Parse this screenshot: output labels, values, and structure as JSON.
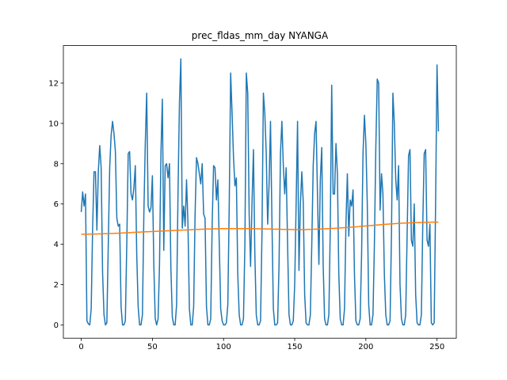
{
  "chart_data": {
    "type": "line",
    "title": "prec_fldas_mm_day NYANGA",
    "xlim": [
      -12.55,
      263.55
    ],
    "xticks": [
      0,
      50,
      100,
      150,
      200,
      250
    ],
    "ylim": [
      -0.66,
      13.86
    ],
    "yticks": [
      0,
      2,
      4,
      6,
      8,
      10,
      12
    ],
    "series": [
      {
        "color": "#1f77b4",
        "values": [
          5.6,
          6.6,
          5.9,
          6.5,
          0.2,
          0.05,
          0.0,
          0.8,
          4.8,
          7.6,
          7.6,
          4.7,
          7.6,
          8.9,
          7.8,
          2.6,
          0.5,
          0.0,
          0.1,
          4.0,
          7.8,
          9.4,
          10.1,
          9.5,
          8.6,
          5.3,
          4.9,
          5.0,
          0.9,
          0.0,
          0.0,
          0.2,
          4.0,
          8.5,
          8.6,
          6.5,
          6.2,
          6.8,
          7.9,
          3.5,
          0.9,
          0.0,
          0.0,
          0.5,
          5.5,
          9.0,
          11.5,
          5.9,
          5.6,
          5.8,
          7.4,
          3.0,
          0.3,
          0.0,
          0.3,
          3.0,
          8.5,
          11.2,
          3.7,
          7.9,
          8.0,
          7.3,
          8.0,
          2.8,
          0.4,
          0.0,
          0.0,
          1.0,
          6.5,
          11.0,
          13.2,
          4.8,
          5.9,
          4.9,
          7.2,
          5.0,
          0.8,
          0.0,
          0.0,
          0.9,
          5.5,
          8.3,
          8.0,
          7.5,
          7.0,
          8.0,
          5.5,
          5.3,
          0.9,
          0.0,
          0.0,
          0.3,
          5.0,
          7.9,
          7.8,
          6.2,
          7.2,
          4.0,
          0.8,
          0.2,
          0.0,
          0.0,
          0.1,
          1.0,
          6.0,
          12.5,
          10.5,
          8.3,
          6.9,
          7.3,
          2.5,
          0.5,
          0.0,
          0.0,
          0.3,
          4.0,
          12.5,
          11.5,
          5.5,
          2.9,
          6.0,
          8.7,
          3.5,
          0.5,
          0.0,
          0.0,
          0.2,
          4.5,
          11.5,
          10.5,
          8.5,
          5.0,
          7.0,
          10.1,
          5.2,
          0.8,
          0.0,
          0.0,
          0.1,
          3.0,
          8.5,
          10.1,
          7.9,
          6.5,
          7.8,
          4.0,
          0.5,
          0.0,
          0.0,
          0.2,
          2.0,
          6.0,
          10.1,
          2.7,
          6.0,
          7.6,
          6.1,
          1.5,
          0.1,
          0.0,
          0.0,
          0.5,
          4.0,
          7.9,
          9.5,
          10.1,
          6.5,
          3.0,
          7.2,
          8.8,
          3.0,
          0.3,
          0.0,
          0.0,
          0.5,
          4.8,
          11.9,
          6.5,
          6.5,
          9.0,
          7.5,
          2.5,
          0.3,
          0.0,
          0.0,
          0.8,
          5.0,
          7.5,
          4.4,
          6.2,
          5.9,
          6.7,
          2.5,
          0.2,
          0.0,
          0.0,
          0.3,
          3.5,
          8.5,
          10.4,
          9.0,
          6.0,
          1.0,
          0.0,
          0.0,
          0.5,
          4.0,
          8.8,
          12.2,
          12.0,
          5.7,
          7.5,
          6.5,
          2.5,
          0.5,
          0.0,
          0.0,
          0.2,
          4.5,
          11.5,
          10.0,
          7.2,
          6.2,
          7.9,
          2.0,
          0.3,
          0.0,
          0.0,
          0.5,
          4.5,
          8.4,
          8.7,
          4.2,
          3.9,
          6.0,
          1.5,
          0.1,
          0.0,
          0.0,
          0.5,
          5.0,
          8.5,
          8.7,
          4.2,
          3.9,
          5.0,
          0.1,
          0.0,
          0.1,
          6.0,
          12.9,
          9.6
        ]
      },
      {
        "color": "#ff7f0e",
        "values": [
          4.5,
          4.5,
          4.5,
          4.5,
          4.5,
          4.5,
          4.51,
          4.51,
          4.51,
          4.51,
          4.51,
          4.51,
          4.52,
          4.52,
          4.52,
          4.52,
          4.53,
          4.53,
          4.53,
          4.53,
          4.54,
          4.54,
          4.54,
          4.54,
          4.55,
          4.55,
          4.55,
          4.56,
          4.56,
          4.56,
          4.57,
          4.57,
          4.57,
          4.58,
          4.58,
          4.58,
          4.59,
          4.59,
          4.59,
          4.6,
          4.6,
          4.6,
          4.61,
          4.61,
          4.61,
          4.62,
          4.62,
          4.62,
          4.63,
          4.63,
          4.63,
          4.64,
          4.64,
          4.64,
          4.65,
          4.65,
          4.65,
          4.66,
          4.66,
          4.66,
          4.67,
          4.67,
          4.67,
          4.68,
          4.68,
          4.68,
          4.69,
          4.69,
          4.69,
          4.7,
          4.7,
          4.7,
          4.71,
          4.71,
          4.71,
          4.72,
          4.72,
          4.72,
          4.73,
          4.73,
          4.73,
          4.74,
          4.74,
          4.74,
          4.75,
          4.75,
          4.75,
          4.75,
          4.76,
          4.76,
          4.76,
          4.76,
          4.77,
          4.77,
          4.77,
          4.77,
          4.77,
          4.78,
          4.78,
          4.78,
          4.78,
          4.78,
          4.78,
          4.78,
          4.78,
          4.78,
          4.78,
          4.78,
          4.78,
          4.78,
          4.78,
          4.78,
          4.78,
          4.78,
          4.78,
          4.78,
          4.78,
          4.78,
          4.78,
          4.78,
          4.78,
          4.78,
          4.78,
          4.77,
          4.77,
          4.77,
          4.77,
          4.77,
          4.77,
          4.76,
          4.76,
          4.76,
          4.76,
          4.76,
          4.76,
          4.75,
          4.75,
          4.75,
          4.75,
          4.75,
          4.75,
          4.74,
          4.74,
          4.74,
          4.74,
          4.74,
          4.74,
          4.73,
          4.73,
          4.73,
          4.73,
          4.73,
          4.73,
          4.73,
          4.73,
          4.73,
          4.73,
          4.73,
          4.73,
          4.74,
          4.74,
          4.74,
          4.74,
          4.75,
          4.75,
          4.75,
          4.75,
          4.76,
          4.76,
          4.76,
          4.77,
          4.77,
          4.77,
          4.78,
          4.78,
          4.78,
          4.79,
          4.79,
          4.79,
          4.8,
          4.8,
          4.81,
          4.81,
          4.82,
          4.82,
          4.83,
          4.83,
          4.84,
          4.84,
          4.85,
          4.85,
          4.86,
          4.86,
          4.87,
          4.87,
          4.88,
          4.89,
          4.89,
          4.9,
          4.9,
          4.91,
          4.92,
          4.92,
          4.93,
          4.93,
          4.94,
          4.95,
          4.95,
          4.96,
          4.96,
          4.97,
          4.98,
          4.98,
          4.99,
          4.99,
          5.0,
          5.0,
          5.01,
          5.01,
          5.02,
          5.02,
          5.03,
          5.03,
          5.04,
          5.04,
          5.05,
          5.05,
          5.05,
          5.06,
          5.06,
          5.06,
          5.07,
          5.07,
          5.07,
          5.07,
          5.08,
          5.08,
          5.08,
          5.08,
          5.09,
          5.09,
          5.09,
          5.09,
          5.09,
          5.09,
          5.1,
          5.1,
          5.1,
          5.1,
          5.1,
          5.1,
          5.1
        ]
      }
    ]
  }
}
